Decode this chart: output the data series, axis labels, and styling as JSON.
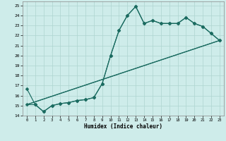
{
  "xlabel": "Humidex (Indice chaleur)",
  "xlim": [
    -0.5,
    23.5
  ],
  "ylim": [
    14,
    25.4
  ],
  "xticks": [
    0,
    1,
    2,
    3,
    4,
    5,
    6,
    7,
    8,
    9,
    10,
    11,
    12,
    13,
    14,
    15,
    16,
    17,
    18,
    19,
    20,
    21,
    22,
    23
  ],
  "yticks": [
    14,
    15,
    16,
    17,
    18,
    19,
    20,
    21,
    22,
    23,
    24,
    25
  ],
  "bg_color": "#ceecea",
  "grid_color": "#aed4d0",
  "line_color": "#1a6b60",
  "series": [
    {
      "x": [
        0,
        1,
        2,
        3,
        4,
        5,
        6,
        7,
        8,
        9,
        10,
        11,
        12,
        13,
        14,
        15,
        16,
        17,
        18,
        19,
        20,
        21,
        22,
        23
      ],
      "y": [
        16.7,
        15.1,
        14.4,
        15.0,
        15.2,
        15.3,
        15.5,
        15.6,
        15.8,
        17.2,
        20.0,
        22.5,
        24.0,
        24.9,
        23.2,
        23.5,
        23.2,
        23.2,
        23.2,
        23.8,
        23.2,
        22.9,
        22.2,
        21.5
      ],
      "marker": "D",
      "marker_size": 2.5,
      "linewidth": 0.85
    },
    {
      "x": [
        0,
        1,
        2,
        3,
        4,
        5,
        6,
        7,
        8,
        9,
        10,
        11,
        12,
        13,
        14,
        15,
        16,
        17,
        18,
        19,
        20,
        21,
        22,
        23
      ],
      "y": [
        15.1,
        15.1,
        14.4,
        15.0,
        15.2,
        15.3,
        15.5,
        15.6,
        15.8,
        17.2,
        20.0,
        22.5,
        24.0,
        24.9,
        23.2,
        23.5,
        23.2,
        23.2,
        23.2,
        23.8,
        23.2,
        22.9,
        22.2,
        21.5
      ],
      "marker": "D",
      "marker_size": 2.5,
      "linewidth": 0.85
    },
    {
      "x": [
        0,
        23
      ],
      "y": [
        15.1,
        21.5
      ],
      "marker": null,
      "marker_size": 0,
      "linewidth": 0.85
    },
    {
      "x": [
        0,
        23
      ],
      "y": [
        15.1,
        21.5
      ],
      "marker": null,
      "marker_size": 0,
      "linewidth": 0.85
    }
  ]
}
